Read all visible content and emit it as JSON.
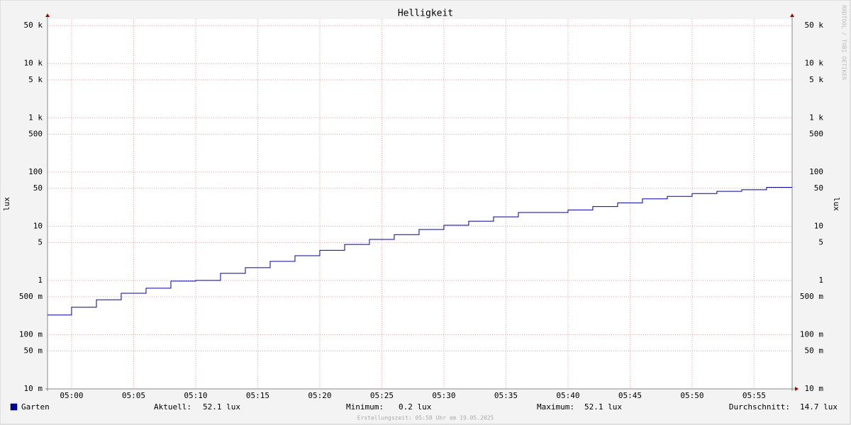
{
  "chart_data": {
    "type": "step",
    "title": "Helligkeit",
    "y_label": "lux",
    "watermark": "RRDTOOL / TOBI OETIKER",
    "footer": "Erstellungszeit: 05:58 Uhr am 19.05.2025",
    "log_scale": true,
    "grid": true,
    "xlim": [
      -1.94,
      58.06
    ],
    "xticks": [
      {
        "value": 0,
        "label": "05:00"
      },
      {
        "value": 5,
        "label": "05:05"
      },
      {
        "value": 10,
        "label": "05:10"
      },
      {
        "value": 15,
        "label": "05:15"
      },
      {
        "value": 20,
        "label": "05:20"
      },
      {
        "value": 25,
        "label": "05:25"
      },
      {
        "value": 30,
        "label": "05:30"
      },
      {
        "value": 35,
        "label": "05:35"
      },
      {
        "value": 40,
        "label": "05:40"
      },
      {
        "value": 45,
        "label": "05:45"
      },
      {
        "value": 50,
        "label": "05:50"
      },
      {
        "value": 55,
        "label": "05:55"
      }
    ],
    "ylim": [
      0.01,
      66000
    ],
    "yticks": [
      {
        "value": 0.01,
        "label": "10 m"
      },
      {
        "value": 0.05,
        "label": "50 m"
      },
      {
        "value": 0.1,
        "label": "100 m"
      },
      {
        "value": 0.5,
        "label": "500 m"
      },
      1,
      5,
      10,
      50,
      100,
      500,
      {
        "value": 1000,
        "label": "1 k"
      },
      {
        "value": 5000,
        "label": "5 k"
      },
      {
        "value": 10000,
        "label": "10 k"
      },
      {
        "value": 50000,
        "label": "50 k"
      }
    ],
    "x": [
      -1.94,
      0,
      2,
      4,
      6,
      8,
      10,
      12,
      14,
      16,
      18,
      20,
      22,
      24,
      26,
      28,
      30,
      32,
      34,
      36,
      38,
      40,
      42,
      44,
      46,
      48,
      50,
      52,
      54,
      56
    ],
    "series": [
      {
        "name": "Garten",
        "color": "#0000a0",
        "values": [
          0.23,
          0.32,
          0.44,
          0.58,
          0.72,
          0.97,
          1.0,
          1.35,
          1.72,
          2.25,
          2.86,
          3.6,
          4.6,
          5.7,
          7.0,
          8.7,
          10.4,
          12.4,
          14.9,
          17.9,
          17.9,
          20,
          23,
          27,
          32,
          35.5,
          40,
          44,
          47,
          52.1
        ]
      }
    ],
    "stats": [
      {
        "label": "Aktuell:",
        "value": "52.1 lux"
      },
      {
        "label": "Minimum:",
        "value": "0.2 lux"
      },
      {
        "label": "Maximum:",
        "value": "52.1 lux"
      },
      {
        "label": "Durchschnitt:",
        "value": "14.7 lux"
      }
    ]
  }
}
